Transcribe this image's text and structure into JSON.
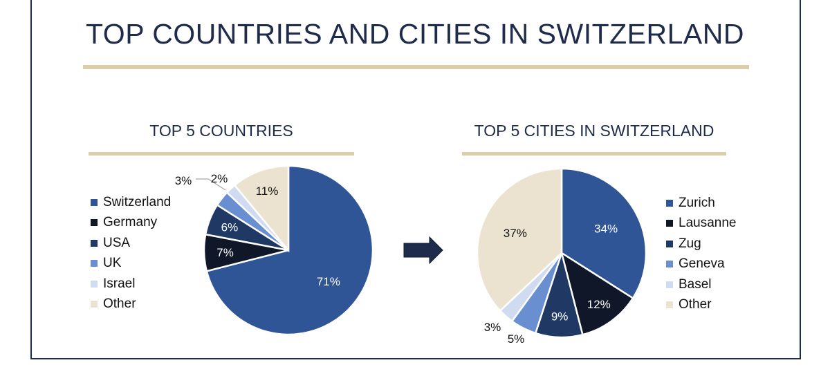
{
  "title": "TOP COUNTRIES AND CITIES IN SWITZERLAND",
  "colors": {
    "navy": "#1f2b4a",
    "gold": "#d9cfa8"
  },
  "chart_data": [
    {
      "type": "pie",
      "title": "TOP 5 COUNTRIES",
      "legend": "left",
      "categories": [
        "Switzerland",
        "Germany",
        "USA",
        "UK",
        "Israel",
        "Other"
      ],
      "values": [
        71,
        7,
        6,
        3,
        2,
        11
      ],
      "labels": [
        "71%",
        "7%",
        "6%",
        "3%",
        "2%",
        "11%"
      ],
      "colors": [
        "#2f5597",
        "#0f1729",
        "#203864",
        "#6a8fd0",
        "#cfdbf0",
        "#ebe3cf"
      ]
    },
    {
      "type": "pie",
      "title": "TOP 5 CITIES IN SWITZERLAND",
      "legend": "right",
      "categories": [
        "Zurich",
        "Lausanne",
        "Zug",
        "Geneva",
        "Basel",
        "Other"
      ],
      "values": [
        34,
        12,
        9,
        5,
        3,
        37
      ],
      "labels": [
        "34%",
        "12%",
        "9%",
        "5%",
        "3%",
        "37%"
      ],
      "colors": [
        "#2f5597",
        "#0f1729",
        "#203864",
        "#6a8fd0",
        "#cfdbf0",
        "#ebe3cf"
      ]
    }
  ]
}
